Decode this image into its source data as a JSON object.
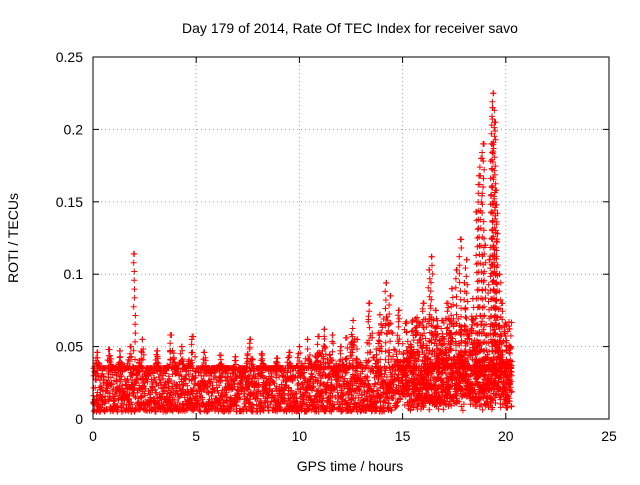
{
  "chart_data": {
    "type": "scatter",
    "title": "Day 179 of 2014, Rate Of TEC Index for receiver savo",
    "xlabel": "GPS time / hours",
    "ylabel": "ROTI / TECUs",
    "xlim": [
      0,
      25
    ],
    "ylim": [
      0,
      0.25
    ],
    "x_ticks": [
      0,
      5,
      10,
      15,
      20,
      25
    ],
    "y_ticks": [
      0,
      0.05,
      0.1,
      0.15,
      0.2,
      0.25
    ],
    "x_tick_labels": [
      "0",
      "5",
      "10",
      "15",
      "20",
      "25"
    ],
    "y_tick_labels": [
      "0",
      "0.05",
      "0.1",
      "0.15",
      "0.2",
      "0.25"
    ],
    "grid": true,
    "marker": "+",
    "series": [
      {
        "color": "#ff0000",
        "x_range": [
          0,
          20.3
        ],
        "points": [
          [
            2.0,
            0.114
          ],
          [
            0.2,
            0.046
          ],
          [
            0.8,
            0.048
          ],
          [
            1.3,
            0.047
          ],
          [
            1.8,
            0.05
          ],
          [
            2.4,
            0.055
          ],
          [
            3.1,
            0.047
          ],
          [
            3.8,
            0.058
          ],
          [
            4.3,
            0.05
          ],
          [
            4.8,
            0.057
          ],
          [
            5.4,
            0.046
          ],
          [
            6.2,
            0.044
          ],
          [
            6.9,
            0.043
          ],
          [
            7.6,
            0.055
          ],
          [
            8.2,
            0.045
          ],
          [
            8.9,
            0.042
          ],
          [
            9.5,
            0.046
          ],
          [
            10.0,
            0.05
          ],
          [
            10.4,
            0.055
          ],
          [
            10.9,
            0.057
          ],
          [
            11.2,
            0.062
          ],
          [
            11.6,
            0.058
          ],
          [
            12.0,
            0.05
          ],
          [
            12.3,
            0.056
          ],
          [
            12.6,
            0.068
          ],
          [
            12.8,
            0.055
          ],
          [
            13.4,
            0.08
          ],
          [
            13.9,
            0.072
          ],
          [
            14.2,
            0.094
          ],
          [
            14.4,
            0.085
          ],
          [
            14.8,
            0.075
          ],
          [
            15.2,
            0.066
          ],
          [
            15.5,
            0.061
          ],
          [
            15.7,
            0.07
          ],
          [
            16.0,
            0.08
          ],
          [
            16.3,
            0.103
          ],
          [
            16.4,
            0.112
          ],
          [
            16.6,
            0.075
          ],
          [
            16.9,
            0.068
          ],
          [
            17.2,
            0.08
          ],
          [
            17.4,
            0.09
          ],
          [
            17.6,
            0.103
          ],
          [
            17.8,
            0.124
          ],
          [
            18.0,
            0.094
          ],
          [
            18.1,
            0.11
          ],
          [
            18.4,
            0.083
          ],
          [
            18.6,
            0.143
          ],
          [
            18.7,
            0.168
          ],
          [
            18.8,
            0.18
          ],
          [
            18.9,
            0.19
          ],
          [
            19.0,
            0.12
          ],
          [
            19.2,
            0.11
          ],
          [
            19.3,
            0.19
          ],
          [
            19.35,
            0.215
          ],
          [
            19.4,
            0.225
          ],
          [
            19.45,
            0.205
          ],
          [
            19.5,
            0.158
          ],
          [
            19.55,
            0.148
          ],
          [
            19.6,
            0.128
          ],
          [
            19.7,
            0.1
          ],
          [
            19.8,
            0.08
          ],
          [
            20.0,
            0.065
          ],
          [
            20.2,
            0.05
          ]
        ],
        "baseline_band": [
          0.005,
          0.035
        ]
      }
    ]
  }
}
